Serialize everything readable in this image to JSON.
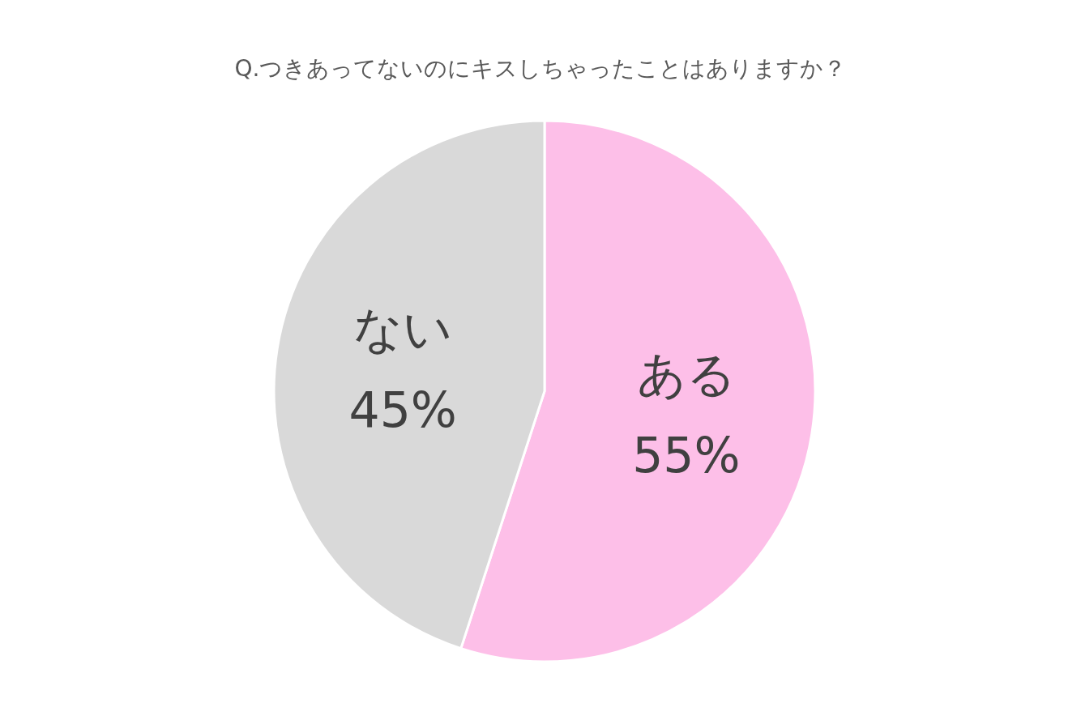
{
  "chart_data": {
    "type": "pie",
    "title": "Q.つきあってないのにキスしちゃったことはありますか？",
    "categories": [
      "ある",
      "ない"
    ],
    "values": [
      55,
      45
    ],
    "colors": [
      "#fdbfe8",
      "#d9d9d9"
    ],
    "value_labels": [
      "55%",
      "45%"
    ]
  }
}
